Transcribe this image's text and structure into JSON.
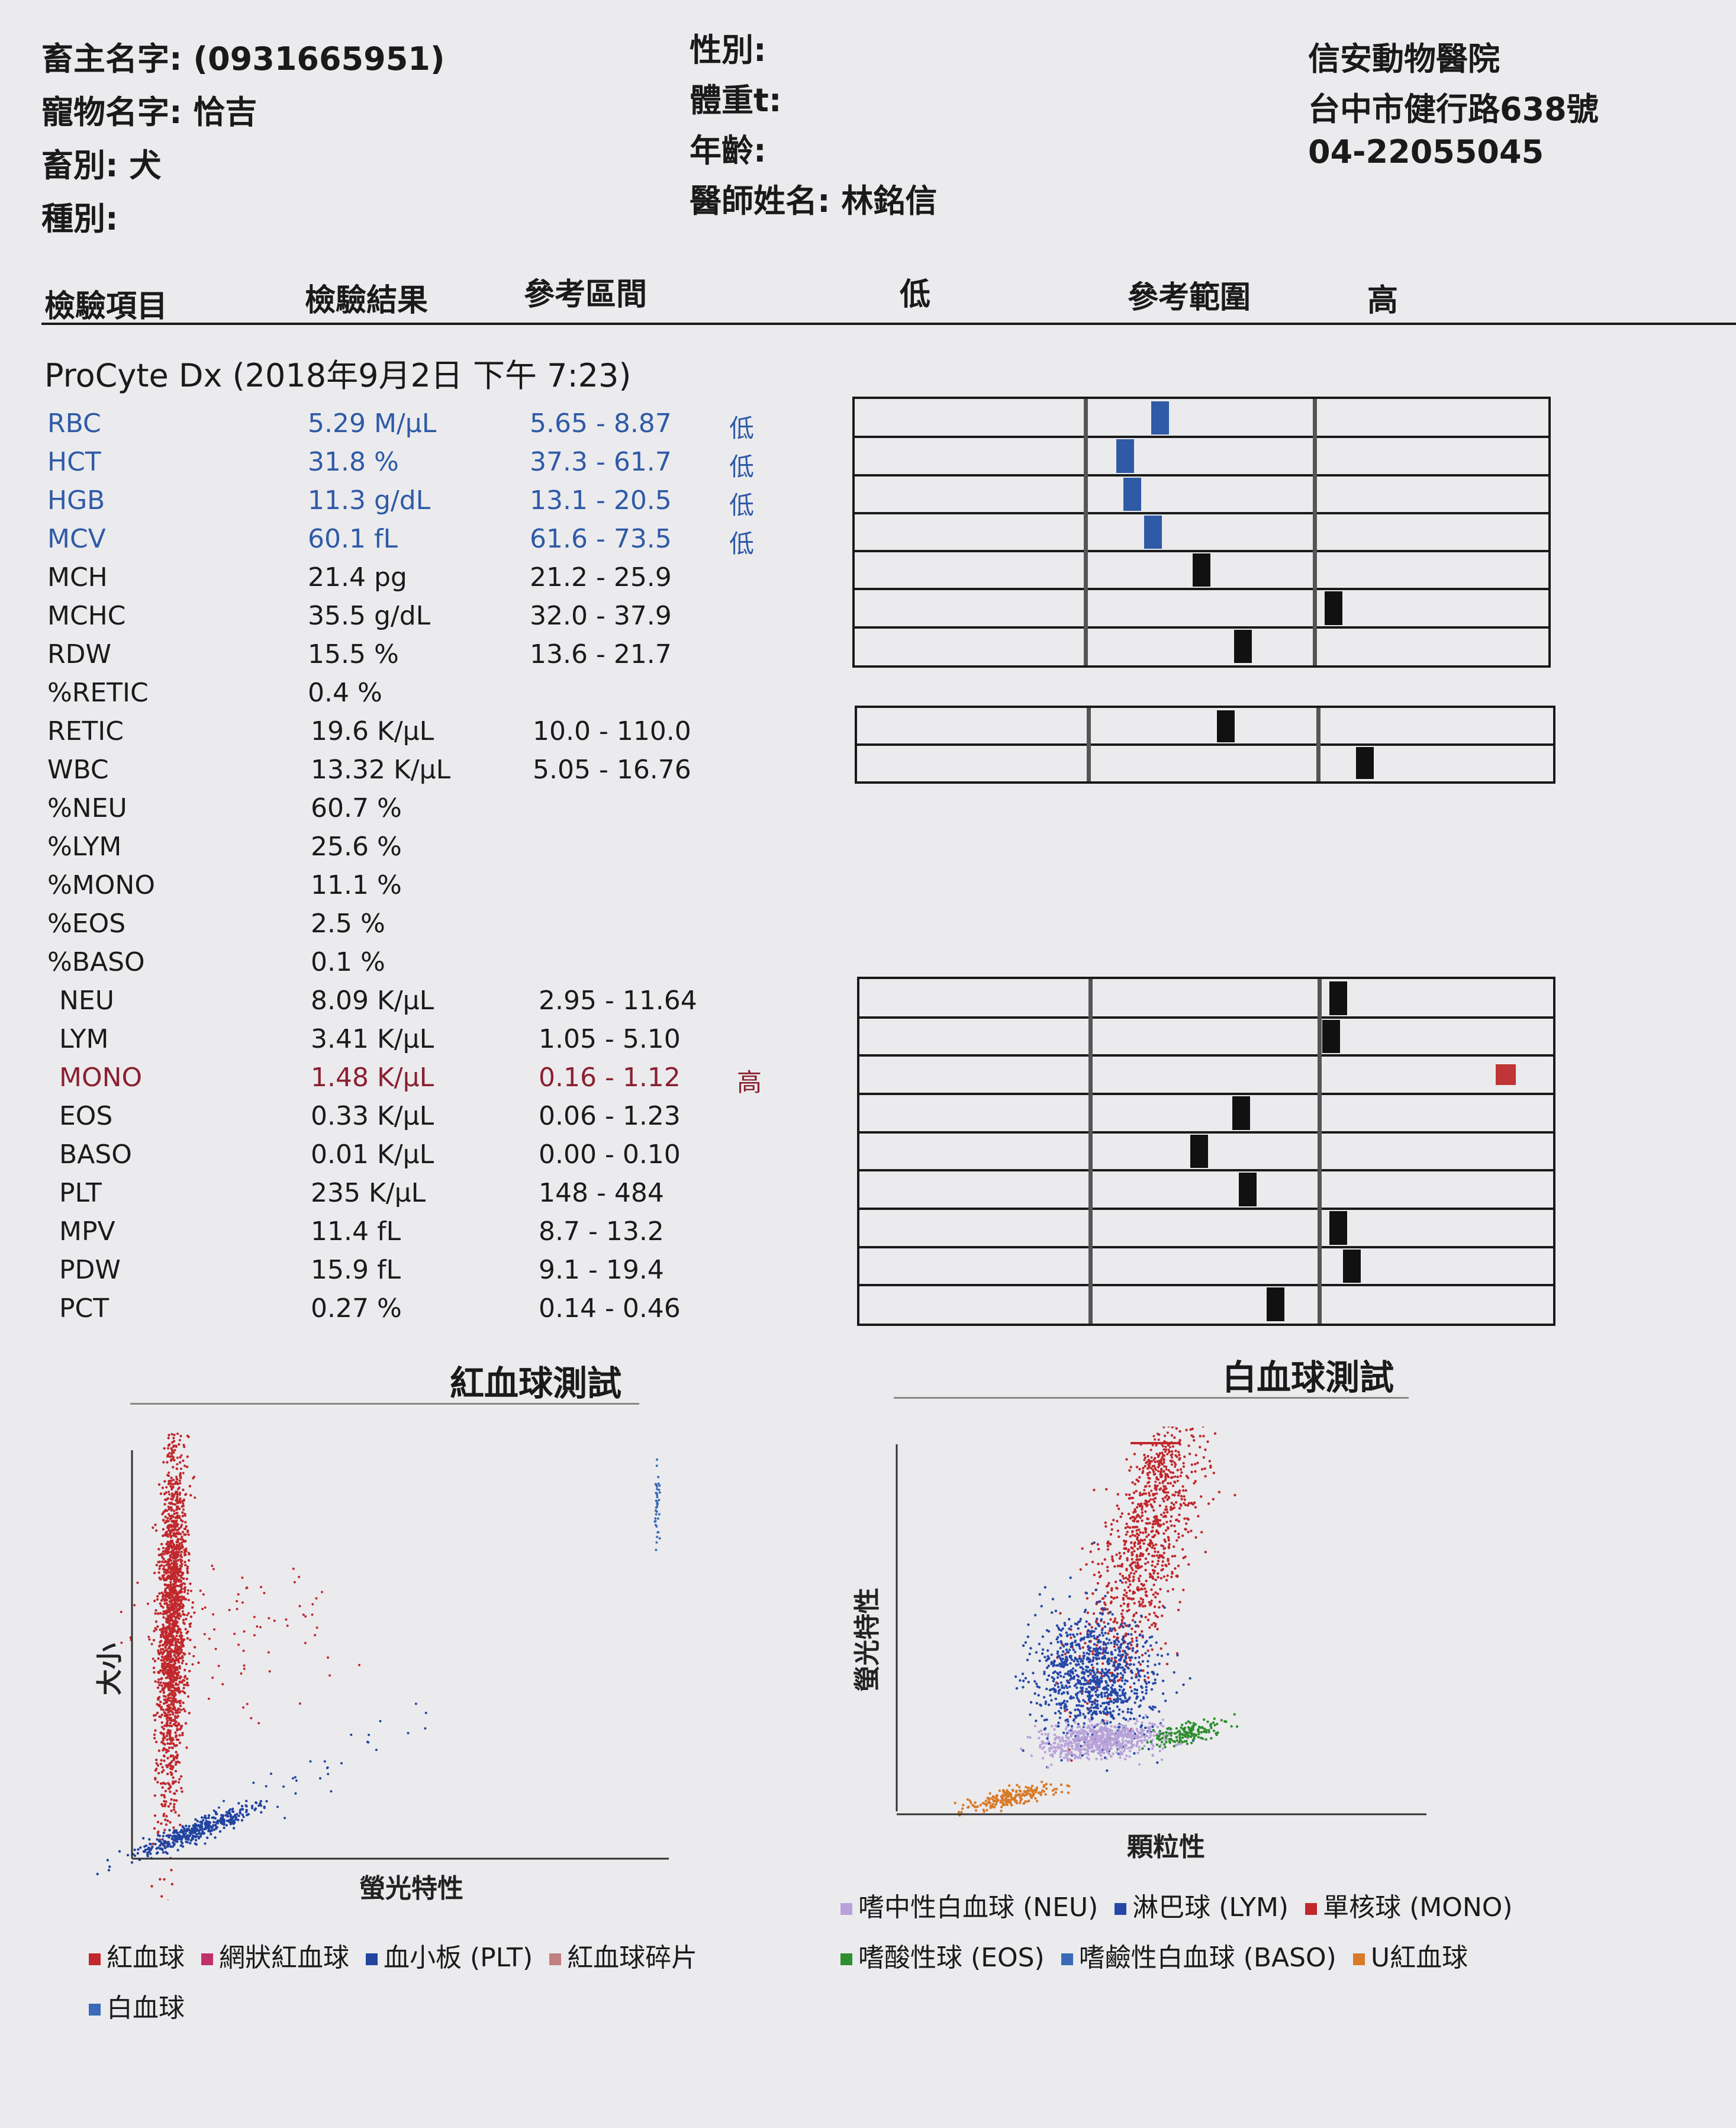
{
  "owner": {
    "owner_label": "畜主名字:",
    "owner_value": "(0931665951)",
    "pet_label": "寵物名字:",
    "pet_value": "恰吉",
    "species_label": "畜別:",
    "species_value": "犬",
    "breed_label": "種別:",
    "sex_label": "性別:",
    "weight_label": "體重t:",
    "age_label": "年齡:",
    "vet_label": "醫師姓名:",
    "vet_value": "林銘信"
  },
  "clinic": {
    "name": "信安動物醫院",
    "address": "台中市健行路638號",
    "phone": "04-22055045"
  },
  "columns": {
    "item": "檢驗項目",
    "result": "檢驗結果",
    "range": "參考區間",
    "low": "低",
    "ref": "參考範圍",
    "high": "高"
  },
  "test_header": "ProCyte Dx (2018年9月2日 下午 7:23)",
  "results": [
    {
      "name": "RBC",
      "value": "5.29 M/µL",
      "range": "5.65 - 8.87",
      "flag": "低",
      "status": "low",
      "bar": 0.44
    },
    {
      "name": "HCT",
      "value": "31.8 %",
      "range": "37.3 - 61.7",
      "flag": "低",
      "status": "low",
      "bar": 0.39
    },
    {
      "name": "HGB",
      "value": "11.3 g/dL",
      "range": "13.1 - 20.5",
      "flag": "低",
      "status": "low",
      "bar": 0.4
    },
    {
      "name": "MCV",
      "value": "60.1 fL",
      "range": "61.6 - 73.5",
      "flag": "低",
      "status": "low",
      "bar": 0.43
    },
    {
      "name": "MCH",
      "value": "21.4 pg",
      "range": "21.2 - 25.9",
      "flag": "",
      "status": "normal",
      "bar": 0.5
    },
    {
      "name": "MCHC",
      "value": "35.5 g/dL",
      "range": "32.0 - 37.9",
      "flag": "",
      "status": "normal",
      "bar": 0.69
    },
    {
      "name": "RDW",
      "value": "15.5 %",
      "range": "13.6 - 21.7",
      "flag": "",
      "status": "normal",
      "bar": 0.56
    },
    {
      "name": "%RETIC",
      "value": "0.4 %",
      "range": "",
      "flag": "",
      "status": "normal",
      "bar": null
    },
    {
      "name": "RETIC",
      "value": "19.6 K/µL",
      "range": "10.0 - 110.0",
      "flag": "",
      "status": "normal",
      "bar": 0.53
    },
    {
      "name": "WBC",
      "value": "13.32 K/µL",
      "range": "5.05 - 16.76",
      "flag": "",
      "status": "normal",
      "bar": 0.73
    },
    {
      "name": "%NEU",
      "value": "60.7 %",
      "range": "",
      "flag": "",
      "status": "normal",
      "bar": null
    },
    {
      "name": "%LYM",
      "value": "25.6 %",
      "range": "",
      "flag": "",
      "status": "normal",
      "bar": null
    },
    {
      "name": "%MONO",
      "value": "11.1 %",
      "range": "",
      "flag": "",
      "status": "normal",
      "bar": null
    },
    {
      "name": "%EOS",
      "value": "2.5 %",
      "range": "",
      "flag": "",
      "status": "normal",
      "bar": null
    },
    {
      "name": "%BASO",
      "value": "0.1 %",
      "range": "",
      "flag": "",
      "status": "normal",
      "bar": null
    },
    {
      "name": "NEU",
      "value": "8.09 K/µL",
      "range": "2.95 - 11.64",
      "flag": "",
      "status": "normal",
      "bar": 0.69
    },
    {
      "name": "LYM",
      "value": "3.41 K/µL",
      "range": "1.05 - 5.10",
      "flag": "",
      "status": "normal",
      "bar": 0.68
    },
    {
      "name": "MONO",
      "value": "1.48 K/µL",
      "range": "0.16 - 1.12",
      "flag": "高",
      "status": "high",
      "bar": 0.93
    },
    {
      "name": "EOS",
      "value": "0.33 K/µL",
      "range": "0.06 - 1.23",
      "flag": "",
      "status": "normal",
      "bar": 0.55
    },
    {
      "name": "BASO",
      "value": "0.01 K/µL",
      "range": "0.00 - 0.10",
      "flag": "",
      "status": "normal",
      "bar": 0.49
    },
    {
      "name": "PLT",
      "value": "235 K/µL",
      "range": "148 - 484",
      "flag": "",
      "status": "normal",
      "bar": 0.56
    },
    {
      "name": "MPV",
      "value": "11.4 fL",
      "range": "8.7 - 13.2",
      "flag": "",
      "status": "normal",
      "bar": 0.69
    },
    {
      "name": "PDW",
      "value": "15.9 fL",
      "range": "9.1 - 19.4",
      "flag": "",
      "status": "normal",
      "bar": 0.71
    },
    {
      "name": "PCT",
      "value": "0.27 %",
      "range": "0.14 - 0.46",
      "flag": "",
      "status": "normal",
      "bar": 0.6
    }
  ],
  "colors": {
    "low": "#2f5aa6",
    "high": "#c03535",
    "normal": "#111111",
    "rbc_red": "#c0282c",
    "plt_blue": "#2244a0",
    "neu_purple": "#b8a2d8",
    "lym_blue": "#2548a8",
    "mono_red": "#c0282c",
    "eos_green": "#2e8f2e",
    "ubc_orange": "#d87a2a"
  },
  "rbc_chart": {
    "title": "紅血球測試",
    "ylabel": "大小",
    "xlabel": "螢光特性",
    "legend": [
      {
        "label": "紅血球",
        "color": "#c0282c"
      },
      {
        "label": "網狀紅血球",
        "color": "#c0306a"
      },
      {
        "label": "血小板 (PLT)",
        "color": "#2244a0"
      },
      {
        "label": "紅血球碎片",
        "color": "#c08080"
      },
      {
        "label": "白血球",
        "color": "#3a6ab8"
      }
    ]
  },
  "wbc_chart": {
    "title": "白血球測試",
    "ylabel": "螢光特性",
    "xlabel": "顆粒性",
    "legend": [
      {
        "label": "嗜中性白血球 (NEU)",
        "color": "#b8a2d8"
      },
      {
        "label": "淋巴球 (LYM)",
        "color": "#2548a8"
      },
      {
        "label": "單核球 (MONO)",
        "color": "#c0282c"
      },
      {
        "label": "嗜酸性球 (EOS)",
        "color": "#2e8f2e"
      },
      {
        "label": "嗜鹼性白血球 (BASO)",
        "color": "#3a6ab8"
      },
      {
        "label": "U紅血球",
        "color": "#d87a2a"
      }
    ]
  }
}
